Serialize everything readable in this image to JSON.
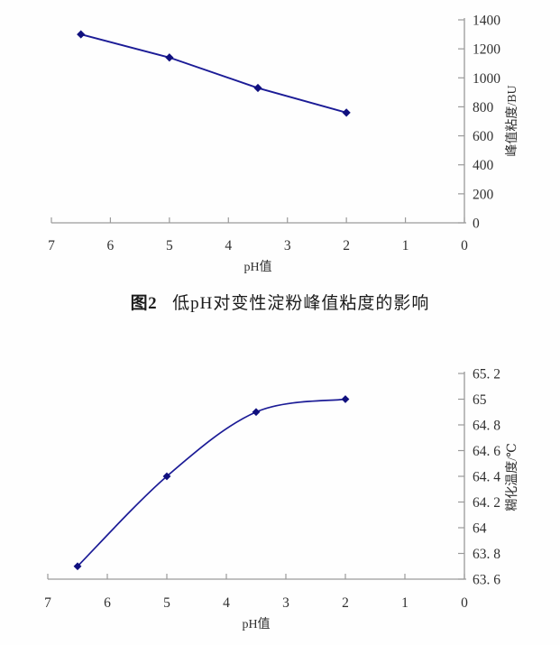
{
  "figure": {
    "caption_label": "图2",
    "caption_text": "低pH对变性淀粉峰值粘度的影响"
  },
  "colors": {
    "series_line": "#1b1b96",
    "marker_fill": "#10107e",
    "axis_line": "#9a9a9a",
    "tick_text": "#2f2f2f"
  },
  "chart_data": [
    {
      "id": "peak-viscosity",
      "type": "line",
      "title": "",
      "x": [
        6.5,
        5,
        3.5,
        2
      ],
      "series": [
        {
          "name": "峰值粘度",
          "values": [
            1300,
            1140,
            930,
            760
          ]
        }
      ],
      "xlabel": "pH值",
      "ylabel": "峰值粘度/BU",
      "xlim": [
        7,
        0
      ],
      "xticks": [
        7,
        6,
        5,
        4,
        3,
        2,
        1,
        0
      ],
      "xtick_labels": [
        "7",
        "6",
        "5",
        "4",
        "3",
        "2",
        "1",
        "0"
      ],
      "ylim": [
        0,
        1400
      ],
      "yticks": [
        0,
        200,
        400,
        600,
        800,
        1000,
        1200,
        1400
      ],
      "ytick_labels": [
        "0",
        "200",
        "400",
        "600",
        "800",
        "1000",
        "1200",
        "1400"
      ],
      "y_axis_side": "right",
      "grid": false,
      "legend": "none",
      "marker": "diamond",
      "smooth": false
    },
    {
      "id": "gelatinization-temperature",
      "type": "line",
      "title": "",
      "x": [
        6.5,
        5,
        3.5,
        2
      ],
      "series": [
        {
          "name": "糊化温度",
          "values": [
            63.7,
            64.4,
            64.9,
            65.0
          ]
        }
      ],
      "xlabel": "pH值",
      "ylabel": "糊化温度/℃",
      "xlim": [
        7,
        0
      ],
      "xticks": [
        7,
        6,
        5,
        4,
        3,
        2,
        1,
        0
      ],
      "xtick_labels": [
        "7",
        "6",
        "5",
        "4",
        "3",
        "2",
        "1",
        "0"
      ],
      "ylim": [
        63.6,
        65.2
      ],
      "yticks": [
        63.6,
        63.8,
        64,
        64.2,
        64.4,
        64.6,
        64.8,
        65,
        65.2
      ],
      "ytick_labels": [
        "63. 6",
        "63. 8",
        "64",
        "64. 2",
        "64. 4",
        "64. 6",
        "64. 8",
        "65",
        "65. 2"
      ],
      "y_axis_side": "right",
      "grid": false,
      "legend": "none",
      "marker": "diamond",
      "smooth": true
    }
  ]
}
